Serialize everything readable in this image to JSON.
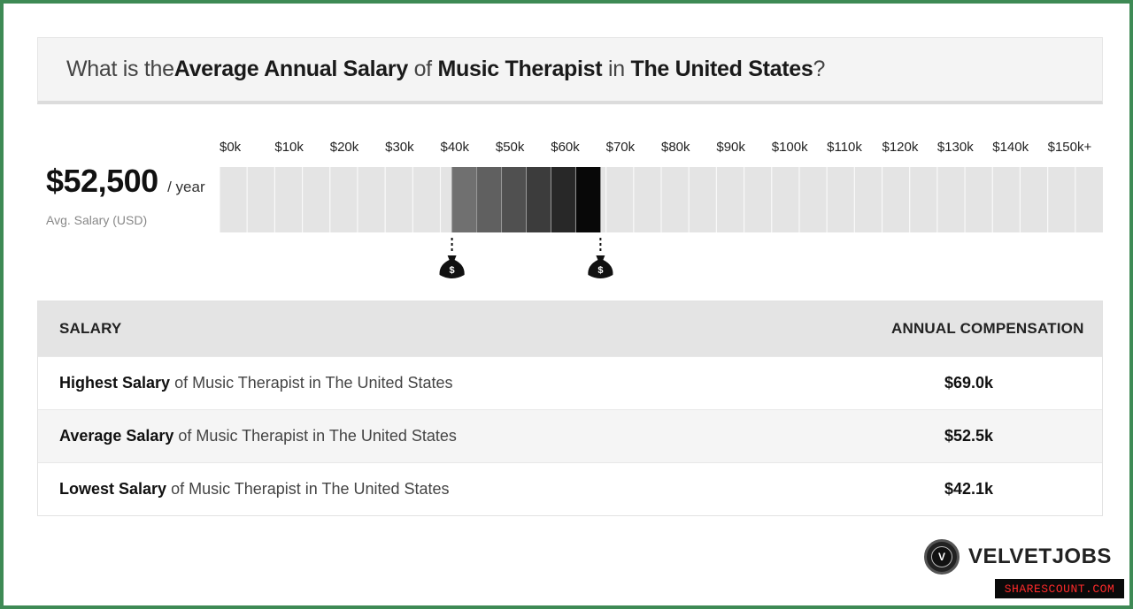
{
  "header": {
    "parts": [
      {
        "text": "What is the ",
        "bold": false
      },
      {
        "text": "Average Annual Salary",
        "bold": true
      },
      {
        "text": " of ",
        "bold": false
      },
      {
        "text": "Music Therapist",
        "bold": true
      },
      {
        "text": " in ",
        "bold": false
      },
      {
        "text": "The United States",
        "bold": true
      },
      {
        "text": "?",
        "bold": false
      }
    ]
  },
  "summary": {
    "amount": "$52,500",
    "per": "/ year",
    "label": "Avg. Salary (USD)"
  },
  "chart_data": {
    "type": "bar",
    "tick_labels": [
      "$0k",
      "$10k",
      "$20k",
      "$30k",
      "$40k",
      "$50k",
      "$60k",
      "$70k",
      "$80k",
      "$90k",
      "$100k",
      "$110k",
      "$120k",
      "$130k",
      "$140k",
      "$150k+"
    ],
    "range_low": 42.1,
    "range_high": 69.0,
    "average": 52.5,
    "segments": 6,
    "colors": {
      "track": "#e4e4e4",
      "track_line": "#ffffff",
      "range_light": "#5a5a5a",
      "range_dark": "#0a0a0a",
      "marker": "#111111"
    },
    "marker_icon": "money-bag-icon",
    "marker_symbol": "$"
  },
  "table": {
    "headers": [
      "SALARY",
      "ANNUAL COMPENSATION"
    ],
    "rows": [
      {
        "bold": "Highest Salary",
        "rest": " of Music Therapist in The United States",
        "value": "$69.0k"
      },
      {
        "bold": "Average Salary",
        "rest": " of Music Therapist in The United States",
        "value": "$52.5k"
      },
      {
        "bold": "Lowest Salary",
        "rest": " of Music Therapist in The United States",
        "value": "$42.1k"
      }
    ]
  },
  "brand": {
    "logo_letter": "V",
    "name": "VELVETJOBS"
  },
  "watermark": "SHARESCOUNT.COM"
}
